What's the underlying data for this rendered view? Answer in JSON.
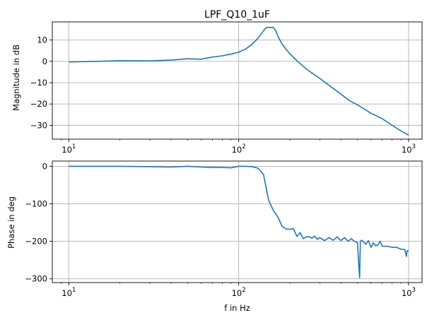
{
  "colors": {
    "series": "#1f77b4",
    "grid": "#b0b0b0",
    "axes": "#000000",
    "background": "#ffffff"
  },
  "chart_data": [
    {
      "type": "line",
      "title": "LPF_Q10_1uF",
      "xlabel": "",
      "ylabel": "Magnitude in dB",
      "xscale": "log",
      "xlim": [
        8.0,
        1200.0
      ],
      "ylim": [
        -36.5,
        18.5
      ],
      "grid": true,
      "xticks": [
        10,
        100,
        1000
      ],
      "xtick_labels": [
        "10",
        "10",
        "10"
      ],
      "xtick_exponents": [
        "1",
        "2",
        "3"
      ],
      "yticks": [
        10,
        0,
        -10,
        -20,
        -30
      ],
      "ytick_labels": [
        "10",
        "0",
        "−10",
        "−20",
        "−30"
      ],
      "series": [
        {
          "x": [
            10,
            15,
            20,
            30,
            40,
            50,
            60,
            70,
            80,
            90,
            100,
            110,
            120,
            130,
            140,
            145,
            150,
            160,
            165,
            170,
            180,
            190,
            200,
            220,
            250,
            300,
            350,
            400,
            450,
            500,
            600,
            700,
            800,
            900,
            1000
          ],
          "values": [
            -0.3,
            0.0,
            0.3,
            0.2,
            0.6,
            1.2,
            1.0,
            2.0,
            2.6,
            3.4,
            4.3,
            5.8,
            8.0,
            10.9,
            14.3,
            15.8,
            15.9,
            15.9,
            14.5,
            11.8,
            8.1,
            5.6,
            3.6,
            0.3,
            -3.6,
            -8.0,
            -12.0,
            -15.4,
            -18.5,
            -20.4,
            -24.3,
            -26.9,
            -30.0,
            -32.6,
            -34.6
          ]
        }
      ]
    },
    {
      "type": "line",
      "title": "",
      "xlabel": "f in Hz",
      "ylabel": "Phase in deg",
      "xscale": "log",
      "xlim": [
        8.0,
        1200.0
      ],
      "ylim": [
        -310,
        14
      ],
      "grid": true,
      "xticks": [
        10,
        100,
        1000
      ],
      "xtick_labels": [
        "10",
        "10",
        "10"
      ],
      "xtick_exponents": [
        "1",
        "2",
        "3"
      ],
      "yticks": [
        0,
        -100,
        -200,
        -300
      ],
      "ytick_labels": [
        "0",
        "−100",
        "−200",
        "−300"
      ],
      "series": [
        {
          "x": [
            10,
            20,
            30,
            40,
            50,
            60,
            70,
            80,
            90,
            100,
            110,
            120,
            130,
            140,
            150,
            160,
            170,
            180,
            190,
            200,
            210,
            220,
            230,
            240,
            250,
            260,
            270,
            280,
            290,
            300,
            320,
            340,
            360,
            380,
            400,
            420,
            440,
            460,
            480,
            500,
            510,
            515,
            520,
            530,
            560,
            580,
            600,
            620,
            640,
            660,
            680,
            700,
            750,
            800,
            850,
            900,
            950,
            970,
            980,
            1000
          ],
          "values": [
            0,
            0,
            -1,
            -2,
            0,
            -2,
            -3,
            -3,
            -4,
            0,
            0,
            -1,
            -5,
            -22,
            -90,
            -118,
            -135,
            -160,
            -167,
            -168,
            -166,
            -187,
            -177,
            -193,
            -188,
            -188,
            -192,
            -186,
            -195,
            -190,
            -198,
            -190,
            -197,
            -188,
            -198,
            -190,
            -200,
            -193,
            -200,
            -203,
            -270,
            -297,
            -200,
            -197,
            -208,
            -198,
            -216,
            -204,
            -212,
            -209,
            -200,
            -213,
            -213,
            -216,
            -216,
            -221,
            -222,
            -240,
            -225,
            -226
          ]
        }
      ]
    }
  ]
}
